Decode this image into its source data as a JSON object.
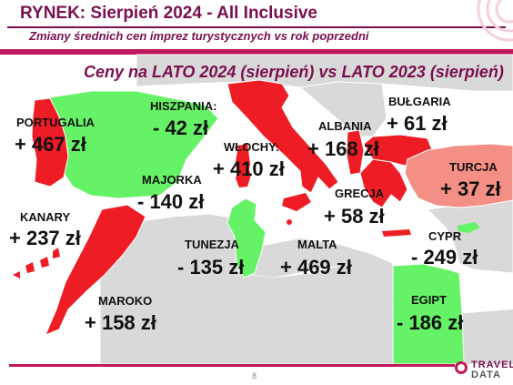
{
  "header": {
    "title": "RYNEK: Sierpień 2024 - All Inclusive",
    "subtitle": "Zmiany średnich cen imprez turystycznych vs rok poprzedni"
  },
  "map": {
    "title": "Ceny na LATO 2024 (sierpień) vs LATO 2023 (sierpień)",
    "colors": {
      "up": "#ee1c24",
      "down": "#66f266",
      "light_up": "#f48f85",
      "land": "#d9d9d9",
      "sea": "#ffffff"
    },
    "regions": [
      {
        "id": "portugalia",
        "name": "PORTUGALIA",
        "change": "+ 467 zł",
        "trend": "up"
      },
      {
        "id": "hiszpania",
        "name": "HISZPANIA:",
        "change": "- 42 zł",
        "trend": "down"
      },
      {
        "id": "majorka",
        "name": "MAJORKA",
        "change": "- 140 zł",
        "trend": "down"
      },
      {
        "id": "wlochy",
        "name": "WŁOCHY:",
        "change": "+ 410 zł",
        "trend": "up"
      },
      {
        "id": "albania",
        "name": "ALBANIA",
        "change": "+ 168 zł",
        "trend": "up"
      },
      {
        "id": "bulgaria",
        "name": "BUŁGARIA",
        "change": "+ 61 zł",
        "trend": "up"
      },
      {
        "id": "turcja",
        "name": "TURCJA",
        "change": "+ 37 zł",
        "trend": "up"
      },
      {
        "id": "grecja",
        "name": "GRECJA",
        "change": "+ 58 zł",
        "trend": "up"
      },
      {
        "id": "kanary",
        "name": "KANARY",
        "change": "+ 237 zł",
        "trend": "up"
      },
      {
        "id": "tunezja",
        "name": "TUNEZJA",
        "change": "- 135 zł",
        "trend": "down"
      },
      {
        "id": "malta",
        "name": "MALTA",
        "change": "+ 469 zł",
        "trend": "up"
      },
      {
        "id": "cypr",
        "name": "CYPR",
        "change": "- 249 zł",
        "trend": "down"
      },
      {
        "id": "maroko",
        "name": "MAROKO",
        "change": "+ 158 zł",
        "trend": "up"
      },
      {
        "id": "egipt",
        "name": "EGIPT",
        "change": "- 186 zł",
        "trend": "down"
      }
    ]
  },
  "footer": {
    "page_number": "8",
    "logo": {
      "top": "TRAVEL",
      "bottom": "DATA"
    }
  }
}
